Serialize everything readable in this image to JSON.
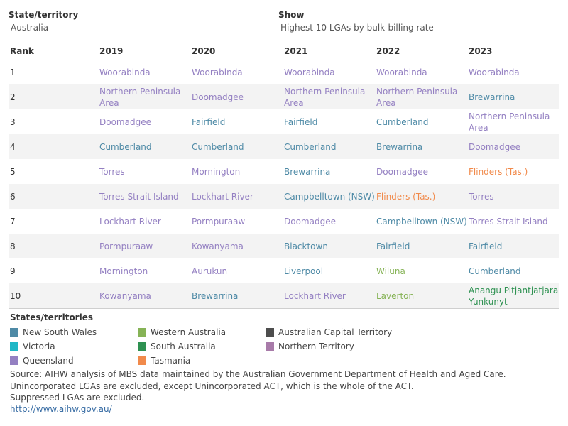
{
  "filters": {
    "state_label": "State/territory",
    "state_value": "Australia",
    "show_label": "Show",
    "show_value": "Highest 10 LGAs by bulk-billing rate"
  },
  "colors": {
    "nsw": "#4e8aa6",
    "vic": "#1fb7c6",
    "qld": "#9480c2",
    "wa": "#86b356",
    "sa": "#2e9151",
    "tas": "#f18a4b",
    "act": "#4d4d4d",
    "nt": "#a87ba9"
  },
  "chart_data": {
    "type": "table",
    "columns": [
      "Rank",
      "2019",
      "2020",
      "2021",
      "2022",
      "2023"
    ],
    "rows": [
      {
        "rank": "1",
        "cells": [
          {
            "name": "Woorabinda",
            "state": "qld"
          },
          {
            "name": "Woorabinda",
            "state": "qld"
          },
          {
            "name": "Woorabinda",
            "state": "qld"
          },
          {
            "name": "Woorabinda",
            "state": "qld"
          },
          {
            "name": "Woorabinda",
            "state": "qld"
          }
        ]
      },
      {
        "rank": "2",
        "cells": [
          {
            "name": "Northern Peninsula Area",
            "state": "qld"
          },
          {
            "name": "Doomadgee",
            "state": "qld"
          },
          {
            "name": "Northern Peninsula Area",
            "state": "qld"
          },
          {
            "name": "Northern Peninsula Area",
            "state": "qld"
          },
          {
            "name": "Brewarrina",
            "state": "nsw"
          }
        ]
      },
      {
        "rank": "3",
        "cells": [
          {
            "name": "Doomadgee",
            "state": "qld"
          },
          {
            "name": "Fairfield",
            "state": "nsw"
          },
          {
            "name": "Fairfield",
            "state": "nsw"
          },
          {
            "name": "Cumberland",
            "state": "nsw"
          },
          {
            "name": "Northern Peninsula Area",
            "state": "qld"
          }
        ]
      },
      {
        "rank": "4",
        "cells": [
          {
            "name": "Cumberland",
            "state": "nsw"
          },
          {
            "name": "Cumberland",
            "state": "nsw"
          },
          {
            "name": "Cumberland",
            "state": "nsw"
          },
          {
            "name": "Brewarrina",
            "state": "nsw"
          },
          {
            "name": "Doomadgee",
            "state": "qld"
          }
        ]
      },
      {
        "rank": "5",
        "cells": [
          {
            "name": "Torres",
            "state": "qld"
          },
          {
            "name": "Mornington",
            "state": "qld"
          },
          {
            "name": "Brewarrina",
            "state": "nsw"
          },
          {
            "name": "Doomadgee",
            "state": "qld"
          },
          {
            "name": "Flinders (Tas.)",
            "state": "tas"
          }
        ]
      },
      {
        "rank": "6",
        "cells": [
          {
            "name": "Torres Strait Island",
            "state": "qld"
          },
          {
            "name": "Lockhart River",
            "state": "qld"
          },
          {
            "name": "Campbelltown (NSW)",
            "state": "nsw"
          },
          {
            "name": "Flinders (Tas.)",
            "state": "tas"
          },
          {
            "name": "Torres",
            "state": "qld"
          }
        ]
      },
      {
        "rank": "7",
        "cells": [
          {
            "name": "Lockhart River",
            "state": "qld"
          },
          {
            "name": "Pormpuraaw",
            "state": "qld"
          },
          {
            "name": "Doomadgee",
            "state": "qld"
          },
          {
            "name": "Campbelltown (NSW)",
            "state": "nsw"
          },
          {
            "name": "Torres Strait Island",
            "state": "qld"
          }
        ]
      },
      {
        "rank": "8",
        "cells": [
          {
            "name": "Pormpuraaw",
            "state": "qld"
          },
          {
            "name": "Kowanyama",
            "state": "qld"
          },
          {
            "name": "Blacktown",
            "state": "nsw"
          },
          {
            "name": "Fairfield",
            "state": "nsw"
          },
          {
            "name": "Fairfield",
            "state": "nsw"
          }
        ]
      },
      {
        "rank": "9",
        "cells": [
          {
            "name": "Mornington",
            "state": "qld"
          },
          {
            "name": "Aurukun",
            "state": "qld"
          },
          {
            "name": "Liverpool",
            "state": "nsw"
          },
          {
            "name": "Wiluna",
            "state": "wa"
          },
          {
            "name": "Cumberland",
            "state": "nsw"
          }
        ]
      },
      {
        "rank": "10",
        "cells": [
          {
            "name": "Kowanyama",
            "state": "qld"
          },
          {
            "name": "Brewarrina",
            "state": "nsw"
          },
          {
            "name": "Lockhart River",
            "state": "qld"
          },
          {
            "name": "Laverton",
            "state": "wa"
          },
          {
            "name": "Anangu Pitjantjatjara Yunkunyt",
            "state": "sa"
          }
        ]
      }
    ]
  },
  "legend": {
    "title": "States/territories",
    "items": [
      {
        "key": "nsw",
        "label": "New South Wales"
      },
      {
        "key": "vic",
        "label": "Victoria"
      },
      {
        "key": "qld",
        "label": "Queensland"
      },
      {
        "key": "wa",
        "label": "Western Australia"
      },
      {
        "key": "sa",
        "label": "South Australia"
      },
      {
        "key": "tas",
        "label": "Tasmania"
      },
      {
        "key": "act",
        "label": "Australian Capital Territory"
      },
      {
        "key": "nt",
        "label": "Northern Territory"
      }
    ]
  },
  "footer": {
    "source": "Source: AIHW analysis of MBS data maintained by the Australian Government Department of Health and Aged Care.",
    "note1": "Unincorporated LGAs are excluded, except Unincorporated ACT, which is the whole of the ACT.",
    "note2": "Suppressed LGAs are excluded.",
    "link": "http://www.aihw.gov.au/"
  }
}
